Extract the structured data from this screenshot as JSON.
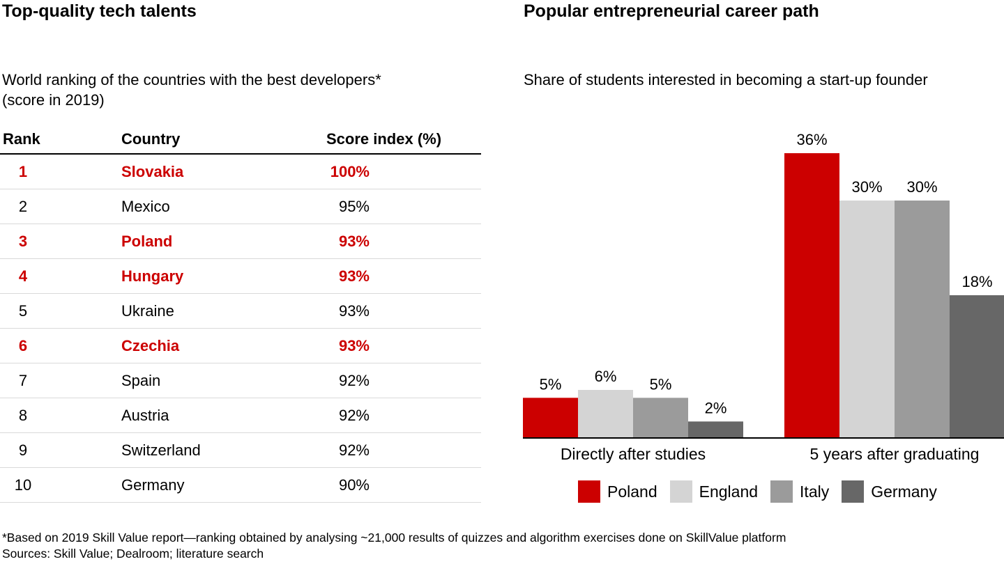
{
  "left": {
    "title": "Top-quality tech talents",
    "subtitle_line1": "World ranking of the countries with the best developers*",
    "subtitle_line2": "(score in 2019)",
    "table": {
      "headers": [
        "Rank",
        "Country",
        "Score index (%)"
      ],
      "rows": [
        {
          "rank": "1",
          "country": "Slovakia",
          "score": "100%",
          "highlight": true
        },
        {
          "rank": "2",
          "country": "Mexico",
          "score": "95%",
          "highlight": false
        },
        {
          "rank": "3",
          "country": "Poland",
          "score": "93%",
          "highlight": true
        },
        {
          "rank": "4",
          "country": "Hungary",
          "score": "93%",
          "highlight": true
        },
        {
          "rank": "5",
          "country": "Ukraine",
          "score": "93%",
          "highlight": false
        },
        {
          "rank": "6",
          "country": "Czechia",
          "score": "93%",
          "highlight": true
        },
        {
          "rank": "7",
          "country": "Spain",
          "score": "92%",
          "highlight": false
        },
        {
          "rank": "8",
          "country": "Austria",
          "score": "92%",
          "highlight": false
        },
        {
          "rank": "9",
          "country": "Switzerland",
          "score": "92%",
          "highlight": false
        },
        {
          "rank": "10",
          "country": "Germany",
          "score": "90%",
          "highlight": false
        }
      ]
    }
  },
  "right": {
    "title": "Popular entrepreneurial career path",
    "subtitle": "Share of students interested in becoming a start-up founder"
  },
  "chart_data": {
    "type": "bar",
    "title": "Popular entrepreneurial career path",
    "subtitle": "Share of students interested in becoming a start-up founder",
    "categories": [
      "Directly after studies",
      "5 years after graduating"
    ],
    "series": [
      {
        "name": "Poland",
        "values": [
          5,
          36
        ],
        "labels": [
          "5%",
          "36%"
        ],
        "color": "#cc0000"
      },
      {
        "name": "England",
        "values": [
          6,
          30
        ],
        "labels": [
          "6%",
          "30%"
        ],
        "color": "#d4d4d4"
      },
      {
        "name": "Italy",
        "values": [
          5,
          30
        ],
        "labels": [
          "5%",
          "30%"
        ],
        "color": "#9b9b9b"
      },
      {
        "name": "Germany",
        "values": [
          2,
          18
        ],
        "labels": [
          "2%",
          "18%"
        ],
        "color": "#676767"
      }
    ],
    "xlabel": "",
    "ylabel": "",
    "ylim": [
      0,
      36
    ],
    "grid": false,
    "legend": "bottom"
  },
  "footnote": {
    "line1": "*Based on 2019 Skill Value report—ranking obtained by analysing ~21,000 results of quizzes and algorithm exercises done on SkillValue platform",
    "line2": "Sources: Skill Value; Dealroom; literature search"
  },
  "colors": {
    "highlight": "#cc0000",
    "axis": "#000000",
    "row_divider": "#d9d9d9"
  }
}
